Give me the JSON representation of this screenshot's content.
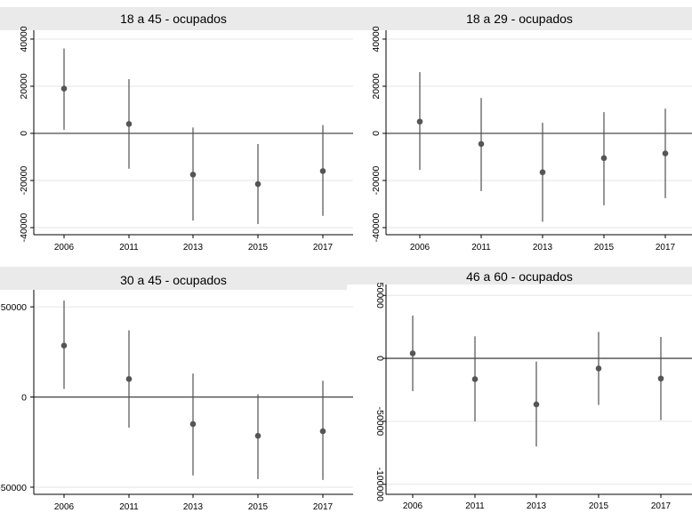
{
  "figure": {
    "colors": {
      "title_band": "#eaeaea",
      "gridline": "#e6e6e6",
      "axis": "#000000",
      "zero_line": "#4a4a4a",
      "ci_line": "#505050",
      "point": "#555555"
    }
  },
  "chart_data": [
    {
      "type": "scatter",
      "title": "18 a 45 - ocupados",
      "categories": [
        "2006",
        "2011",
        "2013",
        "2015",
        "2017"
      ],
      "estimates": [
        19000,
        4000,
        -17500,
        -21500,
        -16000
      ],
      "ci_lower": [
        1500,
        -15000,
        -37000,
        -38500,
        -35000
      ],
      "ci_upper": [
        36000,
        23000,
        2500,
        -4500,
        3500
      ],
      "y_ticks": [
        40000,
        20000,
        0,
        -20000,
        -40000
      ],
      "y_tick_labels": [
        "40000",
        "20000",
        "0",
        "-20000",
        "-40000"
      ],
      "ylim": [
        -41500,
        41500
      ],
      "reference_line": 0,
      "grid": true
    },
    {
      "type": "scatter",
      "title": "18 a 29 - ocupados",
      "categories": [
        "2006",
        "2011",
        "2013",
        "2015",
        "2017"
      ],
      "estimates": [
        5000,
        -4500,
        -16500,
        -10500,
        -8500
      ],
      "ci_lower": [
        -15500,
        -24500,
        -37500,
        -30500,
        -27500
      ],
      "ci_upper": [
        26000,
        15000,
        4500,
        9000,
        10500
      ],
      "y_ticks": [
        40000,
        20000,
        0,
        -20000,
        -40000
      ],
      "y_tick_labels": [
        "40000",
        "20000",
        "0",
        "-20000",
        "-40000"
      ],
      "ylim": [
        -41500,
        41500
      ],
      "reference_line": 0,
      "grid": true
    },
    {
      "type": "scatter",
      "title": "30 a 45 - ocupados",
      "categories": [
        "2006",
        "2011",
        "2013",
        "2015",
        "2017"
      ],
      "estimates": [
        28500,
        10000,
        -15000,
        -21500,
        -19000
      ],
      "ci_lower": [
        4500,
        -17000,
        -43500,
        -45500,
        -46000
      ],
      "ci_upper": [
        53500,
        37000,
        13000,
        1500,
        9000
      ],
      "y_ticks": [
        50000,
        0,
        -50000
      ],
      "y_tick_labels": [
        "50000",
        "0",
        "-50000"
      ],
      "ylim": [
        -51000,
        54000
      ],
      "reference_line": 0,
      "grid": true
    },
    {
      "type": "scatter",
      "title": "46 a 60 - ocupados",
      "categories": [
        "2006",
        "2011",
        "2013",
        "2015",
        "2017"
      ],
      "estimates": [
        4000,
        -16500,
        -36500,
        -8000,
        -16000
      ],
      "ci_lower": [
        -26000,
        -50000,
        -70000,
        -37000,
        -49000
      ],
      "ci_upper": [
        34000,
        17500,
        -2500,
        21000,
        17000
      ],
      "y_ticks": [
        50000,
        0,
        -50000,
        -100000
      ],
      "y_tick_labels": [
        "50000",
        "0",
        "-50000",
        "-100000"
      ],
      "ylim": [
        -103000,
        53000
      ],
      "reference_line": 0,
      "grid": true
    }
  ]
}
